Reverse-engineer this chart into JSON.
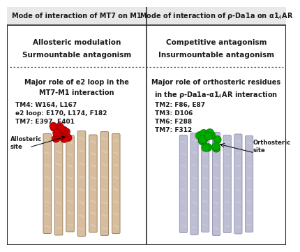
{
  "left_title": "Mode of interaction of MT7 on M1",
  "right_title": "Mode of interaction of ρ-Da1a on α1$_A$AR",
  "left_items_1": "Allosteric modulation",
  "left_items_2": "Surmountable antagonism",
  "right_items_1": "Competitive antagonism",
  "right_items_2": "Insurmountable antagonism",
  "left_body_title": "Major role of e2 loop in the\nMT7-M1 interaction",
  "right_body_title": "Major role of orthosteric residues\nin the ρ-Da1a-α1$_A$AR interaction",
  "left_residues_1": "TM4: W164, L167",
  "left_residues_2": "e2 loop: E170, L174, F182",
  "left_residues_3": "TM7: E397, E401",
  "right_residues_1": "TM2: F86, E87",
  "right_residues_2": "TM3: D106",
  "right_residues_3": "TM6: F288",
  "right_residues_4": "TM7: F312",
  "left_label": "Allosteric\nsite",
  "right_label": "Orthosteric\nsite",
  "bg_color": "#ffffff",
  "border_color": "#2b2b2b",
  "dotted_color": "#555555",
  "text_color": "#1a1a1a",
  "left_protein_color": "#d4b896",
  "left_protein_edge": "#8a7050",
  "left_ball_color": "#cc0000",
  "left_ball_edge": "#880000",
  "right_protein_color": "#b8b8d0",
  "right_protein_edge": "#8888aa",
  "right_ball_color": "#00aa00",
  "right_ball_edge": "#006600",
  "title_bg": "#e8e8e8"
}
